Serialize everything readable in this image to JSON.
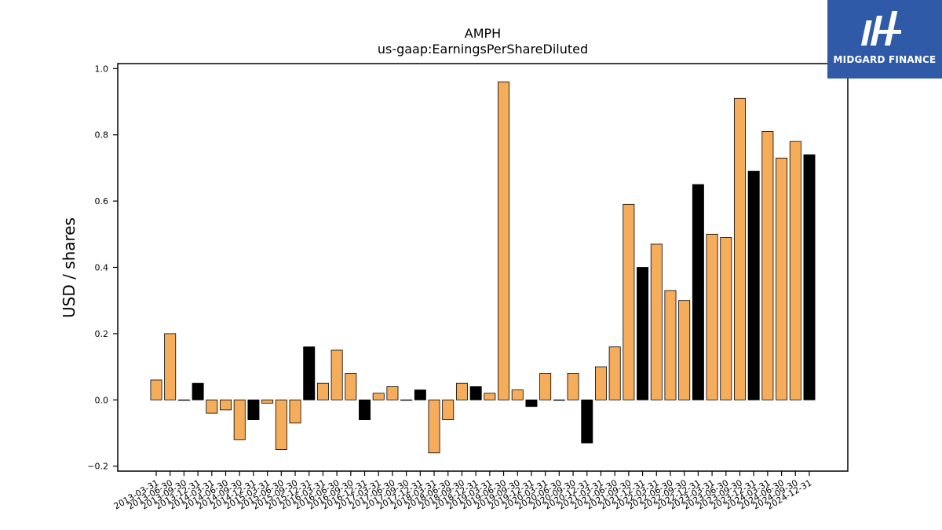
{
  "brand": {
    "name": "MIDGARD FINANCE",
    "logo_icon": "midgard-logo-icon",
    "background": "#2f5aa8"
  },
  "colors": {
    "positive_bar": "#f6ad5b",
    "highlight_bar": "#000000",
    "bar_edge": "#000000"
  },
  "chart_data": {
    "type": "bar",
    "title": "AMPH",
    "subtitle": "us-gaap:EarningsPerShareDiluted",
    "xlabel": "",
    "ylabel": "USD / shares",
    "ylim": [
      -0.215,
      1.015
    ],
    "yticks": [
      -0.2,
      0.0,
      0.2,
      0.4,
      0.6,
      0.8,
      1.0
    ],
    "ytick_labels": [
      "−0.2",
      "0.0",
      "0.2",
      "0.4",
      "0.6",
      "0.8",
      "1.0"
    ],
    "grid": false,
    "legend": "none",
    "categories": [
      "2013-03-31",
      "2013-06-30",
      "2013-09-30",
      "2013-12-31",
      "2014-03-31",
      "2014-06-30",
      "2014-09-30",
      "2014-12-31",
      "2015-03-31",
      "2015-06-30",
      "2015-09-30",
      "2015-12-31",
      "2016-03-31",
      "2016-06-30",
      "2016-09-30",
      "2016-12-31",
      "2017-03-31",
      "2017-06-30",
      "2017-09-30",
      "2017-12-31",
      "2018-03-31",
      "2018-06-30",
      "2018-09-30",
      "2018-12-31",
      "2019-03-31",
      "2019-06-30",
      "2019-09-30",
      "2019-12-31",
      "2020-03-31",
      "2020-06-30",
      "2020-09-30",
      "2020-12-31",
      "2021-03-31",
      "2021-06-30",
      "2021-09-30",
      "2021-12-31",
      "2022-03-31",
      "2022-06-30",
      "2022-09-30",
      "2022-12-31",
      "2023-03-31",
      "2023-06-30",
      "2023-09-30",
      "2023-12-31",
      "2024-03-31",
      "2024-06-30",
      "2024-09-30",
      "2024-12-31"
    ],
    "tick_labels": [
      "2013-03-31",
      "2013-06-30",
      "2013-09-30",
      "2013-12-31",
      "2014-03-31",
      "2014-06-30",
      "2014-09-30",
      "2014-12-31",
      "2015-03-31",
      "2015-06-30",
      "2015-09-30",
      "2015-12-31",
      "2016-03-31",
      "2016-06-30",
      "2016-09-30",
      "2016-12-31",
      "2017-03-31",
      "2017-06-30",
      "2017-09-30",
      "2017-12-31",
      "2018-03-31",
      "2018-06-30",
      "2018-09-30",
      "2018-12-31",
      "2019-03-31",
      "2019-06-30",
      "2019-09-30",
      "2019-12-31",
      "2020-03-31",
      "2020-06-30",
      "2020-09-30",
      "2020-12-31",
      "2021-03-31",
      "2021-06-30",
      "2021-09-30",
      "2021-12-31",
      "2022-03-31",
      "2022-06-30",
      "2022-09-30",
      "2022-12-31",
      "2023-03-31",
      "2023-06-30",
      "2023-09-30",
      "2023-12-31",
      "2024-03-31",
      "2024-06-30",
      "2024-09-30",
      "2024-12-31"
    ],
    "values": [
      0.06,
      0.2,
      0.0,
      0.05,
      -0.04,
      -0.03,
      -0.12,
      -0.06,
      -0.01,
      -0.15,
      -0.07,
      0.16,
      0.05,
      0.15,
      0.08,
      -0.06,
      0.02,
      0.04,
      0.0,
      0.03,
      -0.16,
      -0.06,
      0.05,
      0.04,
      0.02,
      0.96,
      0.03,
      -0.02,
      0.08,
      0.0,
      0.08,
      -0.13,
      0.1,
      0.16,
      0.59,
      0.4,
      0.47,
      0.33,
      0.3,
      0.65,
      0.5,
      0.49,
      0.91,
      0.69,
      0.81,
      0.73,
      0.78,
      0.74
    ],
    "highlight": [
      false,
      false,
      false,
      true,
      false,
      false,
      false,
      true,
      false,
      false,
      false,
      true,
      false,
      false,
      false,
      true,
      false,
      false,
      false,
      true,
      false,
      false,
      false,
      true,
      false,
      false,
      false,
      true,
      false,
      false,
      false,
      true,
      false,
      false,
      false,
      true,
      false,
      false,
      false,
      true,
      false,
      false,
      false,
      true,
      false,
      false,
      false,
      true
    ]
  }
}
